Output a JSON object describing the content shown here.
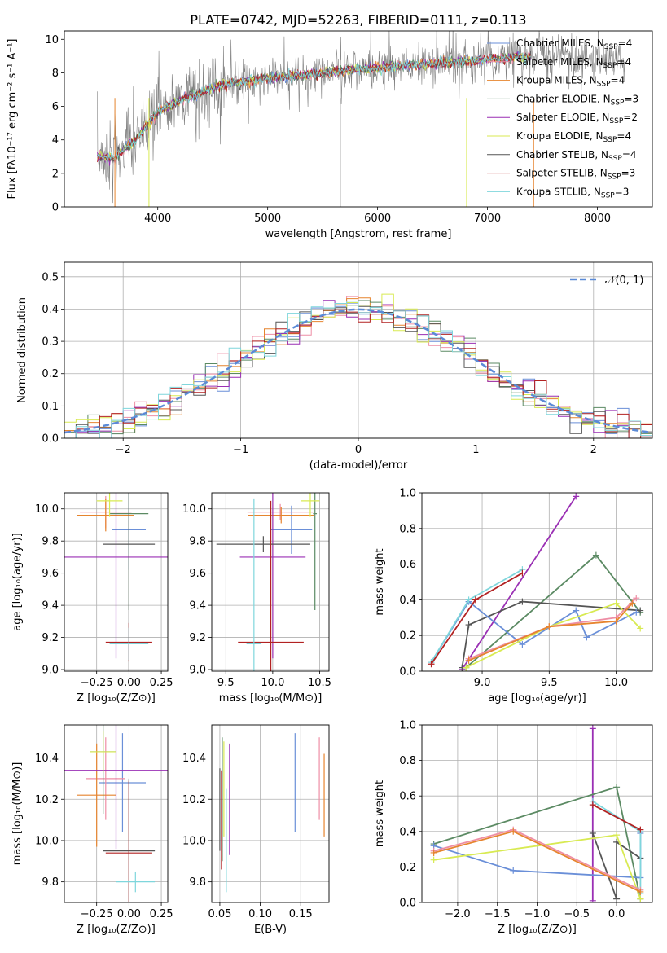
{
  "figure": {
    "title": "PLATE=0742, MJD=52263, FIBERID=0111, z=0.113"
  },
  "chart_data": [
    {
      "id": "spectrum",
      "type": "line",
      "xlabel": "wavelength [Angstrom, rest frame]",
      "ylabel": "Flux [fλ10⁻¹⁷ erg cm⁻² s⁻¹ A⁻¹]",
      "xlim": [
        3150,
        8500
      ],
      "ylim": [
        0,
        10.5
      ],
      "xticks": [
        4000,
        5000,
        6000,
        7000,
        8000
      ],
      "yticks": [
        0,
        2,
        4,
        6,
        8,
        10
      ],
      "grid": false,
      "legend_position": "top-right",
      "legend": [
        {
          "label": "Chabrier MILES, N_SSP=4",
          "color": "#6a8fd8"
        },
        {
          "label": "Salpeter MILES, N_SSP=4",
          "color": "#ee8ea5"
        },
        {
          "label": "Kroupa MILES, N_SSP=4",
          "color": "#e6842e"
        },
        {
          "label": "Chabrier ELODIE, N_SSP=3",
          "color": "#5b8a63"
        },
        {
          "label": "Salpeter ELODIE, N_SSP=2",
          "color": "#9a2fb4"
        },
        {
          "label": "Kroupa ELODIE, N_SSP=4",
          "color": "#d8ea52"
        },
        {
          "label": "Chabrier STELIB, N_SSP=4",
          "color": "#555555"
        },
        {
          "label": "Salpeter STELIB, N_SSP=3",
          "color": "#b22222"
        },
        {
          "label": "Kroupa STELIB, N_SSP=3",
          "color": "#7fd6dc"
        }
      ],
      "data_series": {
        "name": "data",
        "color": "#808080",
        "x_range": [
          3450,
          8250
        ]
      },
      "continuum": {
        "x": [
          3450,
          3600,
          3800,
          4000,
          4300,
          4600,
          5000,
          5400,
          5800,
          6200,
          6600,
          7000,
          7400,
          7800,
          8250
        ],
        "y": [
          3.0,
          2.9,
          4.0,
          5.7,
          6.6,
          7.3,
          7.7,
          7.9,
          8.2,
          8.4,
          8.6,
          8.8,
          9.0,
          8.9,
          8.7
        ]
      }
    },
    {
      "id": "residuals",
      "type": "histogram",
      "xlabel": "(data-model)/error",
      "ylabel": "Normed distribution",
      "xlim": [
        -2.5,
        2.5
      ],
      "ylim": [
        0,
        0.545
      ],
      "xticks": [
        -2,
        -1,
        0,
        1,
        2
      ],
      "yticks": [
        0.0,
        0.1,
        0.2,
        0.3,
        0.4,
        0.5
      ],
      "grid": true,
      "legend_position": "top-right",
      "legend": [
        {
          "label": "𝒩(0, 1)",
          "color": "#5b8ad6"
        }
      ],
      "normal_curve": {
        "mean": 0,
        "sd": 1
      }
    },
    {
      "id": "age-vs-Z",
      "type": "scatter",
      "xlabel": "Z [log₁₀(Z/Z⊙)]",
      "ylabel": "age  [log₁₀(age/yr)]",
      "xlim": [
        -0.5,
        0.3
      ],
      "ylim": [
        8.99,
        10.1
      ],
      "xticks": [
        -0.25,
        0.0,
        0.25
      ],
      "yticks": [
        9.0,
        9.2,
        9.4,
        9.6,
        9.8,
        10.0
      ],
      "grid": true,
      "points": [
        {
          "color": "#6a8fd8",
          "x": 0.0,
          "xerr": 0.13,
          "y": 9.87,
          "yerr": 0.25
        },
        {
          "color": "#ee8ea5",
          "x": -0.18,
          "xerr": 0.2,
          "y": 9.98,
          "yerr": 0.1
        },
        {
          "color": "#e6842e",
          "x": -0.18,
          "xerr": 0.22,
          "y": 9.96,
          "yerr": 0.1
        },
        {
          "color": "#5b8a63",
          "x": 0.0,
          "xerr": 0.15,
          "y": 9.97,
          "yerr": 0.6
        },
        {
          "color": "#9a2fb4",
          "x": -0.1,
          "xerr": 0.4,
          "y": 9.7,
          "yerr": 0.63
        },
        {
          "color": "#d8ea52",
          "x": -0.15,
          "xerr": 0.1,
          "y": 10.05,
          "yerr": 0.1
        },
        {
          "color": "#555555",
          "x": 0.0,
          "xerr": 0.2,
          "y": 9.78,
          "yerr": 0.8
        },
        {
          "color": "#b22222",
          "x": 0.0,
          "xerr": 0.18,
          "y": 9.17,
          "yerr": 0.12
        },
        {
          "color": "#7fd6dc",
          "x": 0.0,
          "xerr": 0.15,
          "y": 9.16,
          "yerr": 0.1
        }
      ]
    },
    {
      "id": "age-vs-mass",
      "type": "scatter",
      "xlabel": "mass [log₁₀(M/M⊙)]",
      "ylabel": "",
      "xlim": [
        9.35,
        10.6
      ],
      "ylim": [
        8.99,
        10.1
      ],
      "xticks": [
        9.5,
        10.0,
        10.5
      ],
      "yticks": [
        9.0,
        9.2,
        9.4,
        9.6,
        9.8,
        10.0
      ],
      "grid": true,
      "points": [
        {
          "color": "#6a8fd8",
          "x": 10.2,
          "xerr": 0.22,
          "y": 9.87,
          "yerr": 0.15
        },
        {
          "color": "#ee8ea5",
          "x": 10.08,
          "xerr": 0.35,
          "y": 9.98,
          "yerr": 0.05
        },
        {
          "color": "#e6842e",
          "x": 10.09,
          "xerr": 0.35,
          "y": 9.96,
          "yerr": 0.05
        },
        {
          "color": "#5b8a63",
          "x": 10.45,
          "xerr": 0.02,
          "y": 9.97,
          "yerr": 0.6
        },
        {
          "color": "#9a2fb4",
          "x": 10.0,
          "xerr": 0.35,
          "y": 9.7,
          "yerr": 0.63
        },
        {
          "color": "#d8ea52",
          "x": 10.4,
          "xerr": 0.1,
          "y": 10.05,
          "yerr": 0.1
        },
        {
          "color": "#555555",
          "x": 9.9,
          "xerr": 0.5,
          "y": 9.78,
          "yerr": 0.05
        },
        {
          "color": "#b22222",
          "x": 9.98,
          "xerr": 0.35,
          "y": 9.17,
          "yerr": 0.88
        },
        {
          "color": "#7fd6dc",
          "x": 9.8,
          "xerr": 0.08,
          "y": 9.16,
          "yerr": 0.9
        }
      ]
    },
    {
      "id": "weight-vs-age",
      "type": "line",
      "xlabel": "age  [log₁₀(age/yr)]",
      "ylabel": "mass weight",
      "xlim": [
        8.55,
        10.27
      ],
      "ylim": [
        0,
        1
      ],
      "xticks": [
        9.0,
        9.5,
        10.0
      ],
      "yticks": [
        0.0,
        0.2,
        0.4,
        0.6,
        0.8,
        1.0
      ],
      "grid": true,
      "series": [
        {
          "color": "#9a2fb4",
          "x": [
            8.85,
            9.7
          ],
          "y": [
            0.01,
            0.98
          ]
        },
        {
          "color": "#5b8a63",
          "x": [
            8.88,
            9.85,
            10.18
          ],
          "y": [
            0.02,
            0.65,
            0.33
          ]
        },
        {
          "color": "#555555",
          "x": [
            8.85,
            8.9,
            9.3,
            10.18
          ],
          "y": [
            0.02,
            0.26,
            0.39,
            0.34
          ]
        },
        {
          "color": "#6a8fd8",
          "x": [
            8.62,
            8.9,
            9.3,
            9.7,
            9.78,
            10.15
          ],
          "y": [
            0.05,
            0.39,
            0.15,
            0.34,
            0.19,
            0.33
          ]
        },
        {
          "color": "#7fd6dc",
          "x": [
            8.62,
            8.9,
            9.3
          ],
          "y": [
            0.05,
            0.4,
            0.57
          ]
        },
        {
          "color": "#b22222",
          "x": [
            8.62,
            8.95,
            9.3
          ],
          "y": [
            0.04,
            0.4,
            0.55
          ]
        },
        {
          "color": "#d8ea52",
          "x": [
            8.88,
            9.5,
            10.0,
            10.18
          ],
          "y": [
            0.02,
            0.25,
            0.38,
            0.24
          ]
        },
        {
          "color": "#ee8ea5",
          "x": [
            8.9,
            9.5,
            10.0,
            10.15
          ],
          "y": [
            0.07,
            0.25,
            0.3,
            0.41
          ]
        },
        {
          "color": "#e6842e",
          "x": [
            8.9,
            9.5,
            10.0,
            10.12
          ],
          "y": [
            0.06,
            0.25,
            0.28,
            0.38
          ]
        }
      ]
    },
    {
      "id": "mass-vs-Z",
      "type": "scatter",
      "xlabel": "Z [log₁₀(Z/Z⊙)]",
      "ylabel": "mass [log₁₀(M/M⊙)]",
      "xlim": [
        -0.5,
        0.3
      ],
      "ylim": [
        9.7,
        10.56
      ],
      "xticks": [
        -0.25,
        0.0,
        0.25
      ],
      "yticks": [
        9.8,
        10.0,
        10.2,
        10.4
      ],
      "grid": true,
      "points": [
        {
          "color": "#6a8fd8",
          "x": -0.05,
          "xerr": 0.18,
          "y": 10.28,
          "yerr": 0.24
        },
        {
          "color": "#ee8ea5",
          "x": -0.18,
          "xerr": 0.15,
          "y": 10.3,
          "yerr": 0.2
        },
        {
          "color": "#e6842e",
          "x": -0.25,
          "xerr": 0.15,
          "y": 10.22,
          "yerr": 0.25
        },
        {
          "color": "#5b8a63",
          "x": -0.2,
          "xerr": 0.1,
          "y": 10.43,
          "yerr": 0.3
        },
        {
          "color": "#9a2fb4",
          "x": -0.1,
          "xerr": 0.4,
          "y": 10.34,
          "yerr": 0.38
        },
        {
          "color": "#d8ea52",
          "x": -0.2,
          "xerr": 0.1,
          "y": 10.43,
          "yerr": 0.1
        },
        {
          "color": "#555555",
          "x": 0.0,
          "xerr": 0.2,
          "y": 9.95,
          "yerr": 0.35
        },
        {
          "color": "#b22222",
          "x": 0.0,
          "xerr": 0.18,
          "y": 9.94,
          "yerr": 0.35
        },
        {
          "color": "#7fd6dc",
          "x": 0.05,
          "xerr": 0.15,
          "y": 9.8,
          "yerr": 0.05
        }
      ]
    },
    {
      "id": "mass-vs-ebv",
      "type": "scatter",
      "xlabel": "E(B-V)",
      "ylabel": "",
      "xlim": [
        0.04,
        0.185
      ],
      "ylim": [
        9.7,
        10.56
      ],
      "xticks": [
        0.05,
        0.1,
        0.15
      ],
      "yticks": [
        9.8,
        10.0,
        10.2,
        10.4
      ],
      "grid": true,
      "points": [
        {
          "color": "#6a8fd8",
          "x": 0.143,
          "y": 10.28,
          "yerr": 0.24
        },
        {
          "color": "#ee8ea5",
          "x": 0.173,
          "y": 10.3,
          "yerr": 0.2
        },
        {
          "color": "#e6842e",
          "x": 0.179,
          "y": 10.22,
          "yerr": 0.2
        },
        {
          "color": "#5b8a63",
          "x": 0.053,
          "y": 10.2,
          "yerr": 0.3
        },
        {
          "color": "#9a2fb4",
          "x": 0.062,
          "y": 10.2,
          "yerr": 0.27
        },
        {
          "color": "#d8ea52",
          "x": 0.055,
          "y": 10.25,
          "yerr": 0.23
        },
        {
          "color": "#555555",
          "x": 0.05,
          "y": 10.15,
          "yerr": 0.2
        },
        {
          "color": "#b22222",
          "x": 0.052,
          "y": 10.1,
          "yerr": 0.24
        },
        {
          "color": "#7fd6dc",
          "x": 0.058,
          "y": 10.0,
          "yerr": 0.25
        }
      ]
    },
    {
      "id": "weight-vs-Z",
      "type": "line",
      "xlabel": "Z [log₁₀(Z/Z⊙)]",
      "ylabel": "mass weight",
      "xlim": [
        -2.45,
        0.45
      ],
      "ylim": [
        0,
        1
      ],
      "xticks": [
        -2.0,
        -1.5,
        -1.0,
        -0.5,
        0.0
      ],
      "yticks": [
        0.0,
        0.2,
        0.4,
        0.6,
        0.8,
        1.0
      ],
      "grid": true,
      "series": [
        {
          "color": "#9a2fb4",
          "x": [
            -0.3,
            -0.3
          ],
          "y": [
            0.01,
            0.98
          ]
        },
        {
          "color": "#5b8a63",
          "x": [
            -2.3,
            0.0,
            0.3
          ],
          "y": [
            0.33,
            0.65,
            0.02
          ]
        },
        {
          "color": "#555555",
          "x": [
            -0.3,
            0.0,
            0.0,
            0.3
          ],
          "y": [
            0.39,
            0.02,
            0.34,
            0.25
          ]
        },
        {
          "color": "#6a8fd8",
          "x": [
            -2.3,
            -1.3,
            0.3,
            0.3
          ],
          "y": [
            0.32,
            0.18,
            0.14,
            0.39
          ]
        },
        {
          "color": "#7fd6dc",
          "x": [
            -0.3,
            0.3,
            0.3
          ],
          "y": [
            0.57,
            0.4,
            0.05
          ]
        },
        {
          "color": "#b22222",
          "x": [
            -0.3,
            0.3
          ],
          "y": [
            0.55,
            0.41
          ]
        },
        {
          "color": "#d8ea52",
          "x": [
            -2.3,
            0.0,
            0.3
          ],
          "y": [
            0.24,
            0.38,
            0.02
          ]
        },
        {
          "color": "#ee8ea5",
          "x": [
            -2.3,
            -1.3,
            0.3
          ],
          "y": [
            0.29,
            0.41,
            0.07
          ]
        },
        {
          "color": "#e6842e",
          "x": [
            -2.3,
            -1.3,
            0.3
          ],
          "y": [
            0.28,
            0.4,
            0.06
          ]
        }
      ]
    }
  ]
}
